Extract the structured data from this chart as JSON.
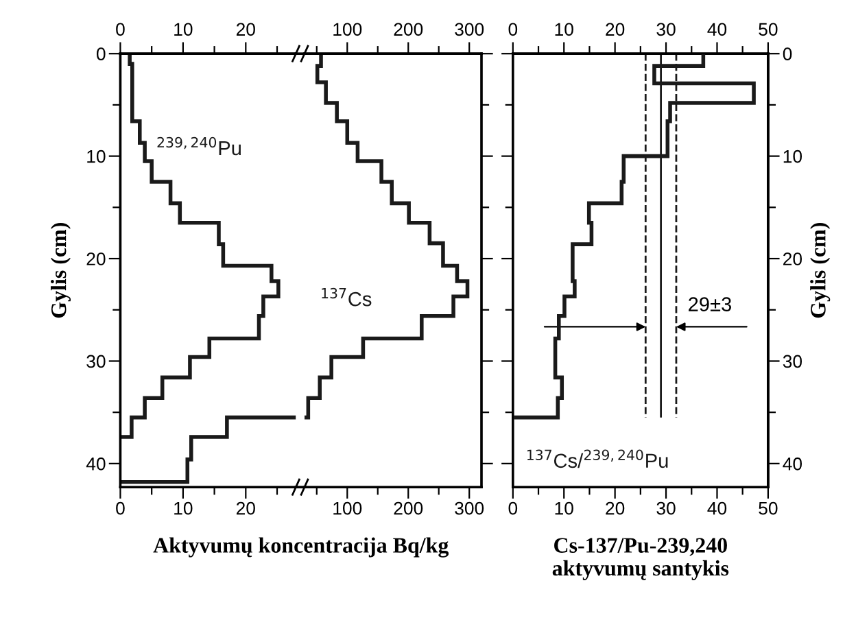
{
  "chart_data": [
    {
      "type": "line",
      "xlabel": "Aktyvumų koncentracija Bq/kg",
      "ylabel": "Gylis (cm)",
      "xlim": [
        0,
        28
      ],
      "xticks": [
        0,
        {
          "value": 5,
          "label": null
        },
        10,
        {
          "value": 15,
          "label": null
        },
        20,
        {
          "value": 25,
          "label": null
        }
      ],
      "x2lim": [
        0,
        28
      ],
      "x2ticks": [
        0,
        {
          "value": 5,
          "label": null
        },
        10,
        {
          "value": 15,
          "label": null
        },
        20,
        {
          "value": 25,
          "label": null
        }
      ],
      "ylim": [
        42.3,
        0
      ],
      "yticks": [
        0,
        {
          "value": 5,
          "label": null
        },
        10,
        {
          "value": 15,
          "label": null
        },
        20,
        {
          "value": 25,
          "label": null
        },
        30,
        {
          "value": 35,
          "label": null
        },
        40
      ],
      "grid": false,
      "legend": false,
      "marker": "none",
      "series": [
        {
          "name": "$^{239,240}$Pu",
          "color": "#1a1a1a",
          "x": [
            1.5,
            1.5,
            1.9,
            1.9,
            3.1,
            3.1,
            3.9,
            3.9,
            5.0,
            5.0,
            8.0,
            8.0,
            9.5,
            9.5,
            15.7,
            15.7,
            16.4,
            16.4,
            24.1,
            24.1,
            25.2,
            25.2,
            22.8,
            22.8,
            22.1,
            22.1,
            14.2,
            14.2,
            11.1,
            11.1,
            6.7,
            6.7,
            3.9,
            3.9,
            1.8,
            1.8,
            0
          ],
          "values": [
            0,
            1.0,
            1.0,
            6.6,
            6.6,
            8.7,
            8.7,
            10.5,
            10.5,
            12.5,
            12.5,
            14.6,
            14.6,
            16.5,
            16.5,
            18.6,
            18.6,
            20.7,
            20.7,
            22.2,
            22.2,
            23.7,
            23.7,
            25.6,
            25.6,
            27.8,
            27.8,
            29.6,
            29.6,
            31.6,
            31.6,
            33.6,
            33.6,
            35.5,
            35.5,
            37.4,
            37.4
          ]
        },
        {
          "color": "#1a1a1a",
          "x": [
            28,
            17,
            17,
            11.3,
            11.3,
            10.7,
            10.7,
            0
          ],
          "values": [
            35.5,
            35.5,
            37.4,
            37.4,
            39.6,
            39.6,
            41.8,
            41.8
          ]
        }
      ]
    },
    {
      "type": "line",
      "tick_labels": "x",
      "xlim": [
        30,
        320
      ],
      "xticks": [
        {
          "value": 50,
          "label": null
        },
        100,
        {
          "value": 150,
          "label": null
        },
        200,
        {
          "value": 250,
          "label": null
        },
        300
      ],
      "x2lim": [
        30,
        320
      ],
      "x2ticks": [
        {
          "value": 50,
          "label": null
        },
        100,
        {
          "value": 150,
          "label": null
        },
        200,
        {
          "value": 250,
          "label": null
        },
        300
      ],
      "ylim": [
        42.3,
        0
      ],
      "grid": false,
      "legend": false,
      "marker": "none",
      "series": [
        {
          "name": "$^{137}$Cs",
          "color": "#1a1a1a",
          "x": [
            57,
            57,
            51,
            51,
            65,
            65,
            83,
            83,
            100,
            100,
            117,
            117,
            156,
            156,
            173,
            173,
            201,
            201,
            235,
            235,
            257,
            257,
            280,
            280,
            297,
            297,
            274,
            274,
            222,
            222,
            126,
            126,
            74,
            74,
            55,
            55,
            36,
            36,
            30
          ],
          "values": [
            0,
            1.2,
            1.2,
            2.8,
            2.8,
            4.8,
            4.8,
            6.6,
            6.6,
            8.7,
            8.7,
            10.5,
            10.5,
            12.5,
            12.5,
            14.6,
            14.6,
            16.5,
            16.5,
            18.5,
            18.5,
            20.7,
            20.7,
            22.2,
            22.2,
            23.7,
            23.7,
            25.6,
            25.6,
            27.8,
            27.8,
            29.6,
            29.6,
            31.6,
            31.6,
            33.6,
            33.6,
            35.5,
            35.5
          ]
        }
      ]
    },
    {
      "type": "line",
      "xlabel": "Cs-137/Pu-239,240\naktyvumų santykis",
      "y2label": "Gylis (cm)",
      "xlim": [
        0,
        50
      ],
      "xticks": [
        0,
        {
          "value": 5,
          "label": null
        },
        10,
        {
          "value": 15,
          "label": null
        },
        20,
        {
          "value": 25,
          "label": null
        },
        30,
        {
          "value": 35,
          "label": null
        },
        40,
        {
          "value": 45,
          "label": null
        },
        50
      ],
      "x2lim": [
        0,
        50
      ],
      "x2ticks": [
        0,
        {
          "value": 5,
          "label": null
        },
        10,
        {
          "value": 15,
          "label": null
        },
        20,
        {
          "value": 25,
          "label": null
        },
        30,
        {
          "value": 35,
          "label": null
        },
        40,
        {
          "value": 45,
          "label": null
        },
        50
      ],
      "y2lim": [
        42.3,
        0
      ],
      "y2ticks": [
        0,
        {
          "value": 5,
          "label": null
        },
        10,
        {
          "value": 15,
          "label": null
        },
        20,
        {
          "value": 25,
          "label": null
        },
        30,
        {
          "value": 35,
          "label": null
        },
        40
      ],
      "grid": false,
      "legend": false,
      "marker": "none",
      "ref_lines": [
        {
          "axis": "x",
          "value": 29,
          "color": "#1a1a1a",
          "line_style": "solid"
        },
        {
          "axis": "x",
          "value": 26,
          "color": "#1a1a1a",
          "line_style": "dashed"
        },
        {
          "axis": "x",
          "value": 32,
          "color": "#1a1a1a",
          "line_style": "dashed"
        }
      ],
      "annotations": [
        "29±3"
      ],
      "series": [
        {
          "name": "$^{137}$Cs/$^{239,240}$Pu",
          "color": "#1a1a1a",
          "axis": "y2",
          "x": [
            37.3,
            37.3,
            27.7,
            27.7,
            47.2,
            47.2,
            30.8,
            30.8,
            30.3,
            30.3,
            21.7,
            21.7,
            21.3,
            21.3,
            14.9,
            14.9,
            15.4,
            15.4,
            11.7,
            11.7,
            12.1,
            12.1,
            10.1,
            10.1,
            9.0,
            9.0,
            8.3,
            8.3,
            9.6,
            9.6,
            8.8,
            8.8,
            0
          ],
          "values": [
            0,
            1.2,
            1.2,
            2.9,
            2.9,
            4.8,
            4.8,
            6.6,
            6.6,
            10.0,
            10.0,
            12.5,
            12.5,
            14.6,
            14.6,
            16.5,
            16.5,
            18.6,
            18.6,
            22.2,
            22.2,
            23.7,
            23.7,
            25.6,
            25.6,
            27.8,
            27.8,
            31.6,
            31.6,
            33.6,
            33.6,
            35.5,
            35.5
          ]
        }
      ]
    }
  ]
}
